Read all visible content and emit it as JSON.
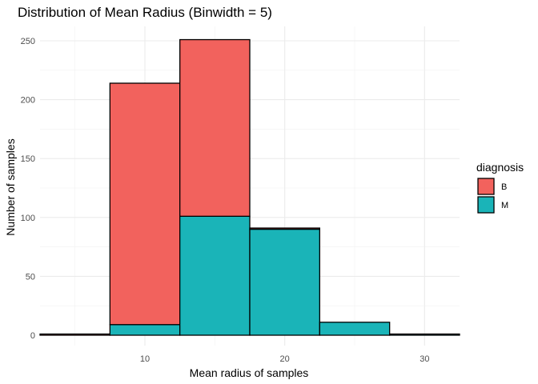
{
  "chart_data": {
    "type": "bar",
    "stacked": true,
    "title": "Distribution of Mean Radius (Binwidth = 5)",
    "xlabel": "Mean radius of samples",
    "ylabel": "Number of samples",
    "binwidth": 5,
    "bins": [
      5,
      10,
      15,
      20,
      25,
      30
    ],
    "xlim": [
      2.5,
      32.5
    ],
    "ylim": [
      0,
      251
    ],
    "x_ticks": [
      10,
      20,
      30
    ],
    "y_ticks": [
      0,
      50,
      100,
      150,
      200,
      250
    ],
    "grid": true,
    "legend": {
      "title": "diagnosis",
      "position": "right"
    },
    "series": [
      {
        "name": "M",
        "color": "#1AB4B8",
        "values": [
          0,
          9,
          101,
          90,
          11,
          1
        ]
      },
      {
        "name": "B",
        "color": "#F2625D",
        "values": [
          1,
          205,
          150,
          1,
          0,
          0
        ]
      }
    ]
  }
}
